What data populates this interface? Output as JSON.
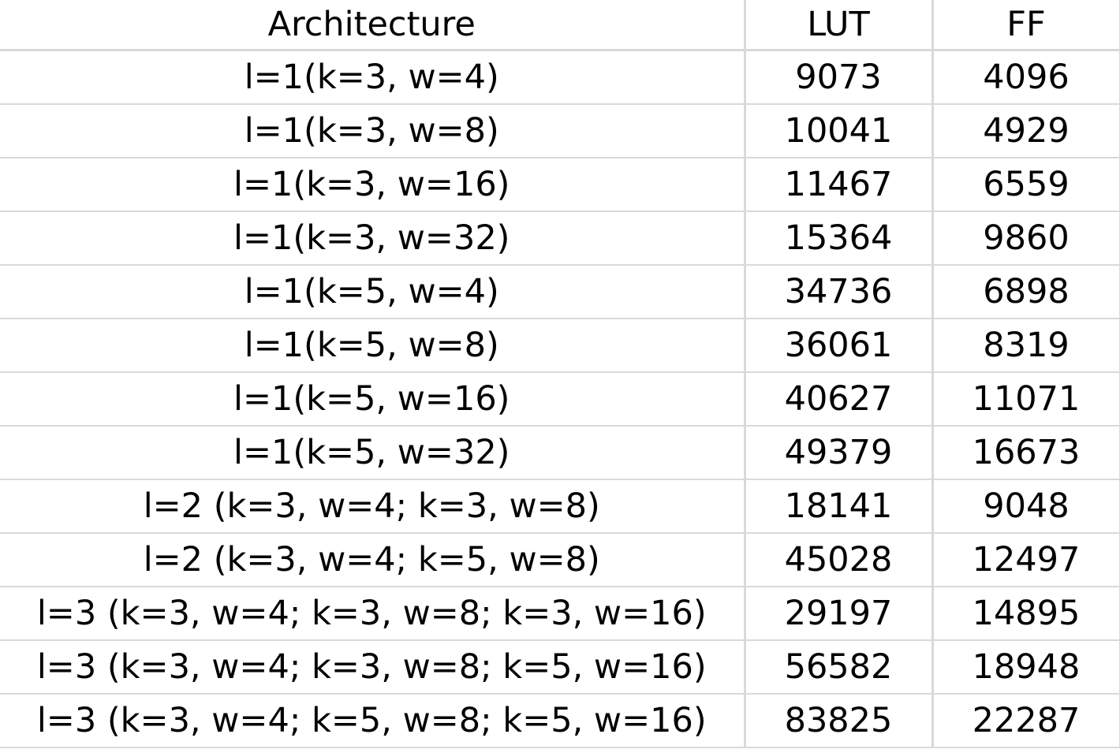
{
  "table": {
    "headers": [
      "Architecture",
      "LUT",
      "FF"
    ],
    "rows": [
      [
        "l=1(k=3, w=4)",
        "9073",
        "4096"
      ],
      [
        "l=1(k=3, w=8)",
        "10041",
        "4929"
      ],
      [
        "l=1(k=3, w=16)",
        "11467",
        "6559"
      ],
      [
        "l=1(k=3, w=32)",
        "15364",
        "9860"
      ],
      [
        "l=1(k=5, w=4)",
        "34736",
        "6898"
      ],
      [
        "l=1(k=5, w=8)",
        "36061",
        "8319"
      ],
      [
        "l=1(k=5, w=16)",
        "40627",
        "11071"
      ],
      [
        "l=1(k=5, w=32)",
        "49379",
        "16673"
      ],
      [
        "l=2 (k=3, w=4; k=3, w=8)",
        "18141",
        "9048"
      ],
      [
        "l=2 (k=3, w=4; k=5, w=8)",
        "45028",
        "12497"
      ],
      [
        "l=3 (k=3, w=4; k=3, w=8; k=3, w=16)",
        "29197",
        "14895"
      ],
      [
        "l=3 (k=3, w=4; k=3, w=8; k=5, w=16)",
        "56582",
        "18948"
      ],
      [
        "l=3 (k=3, w=4; k=5, w=8; k=5, w=16)",
        "83825",
        "22287"
      ]
    ]
  }
}
